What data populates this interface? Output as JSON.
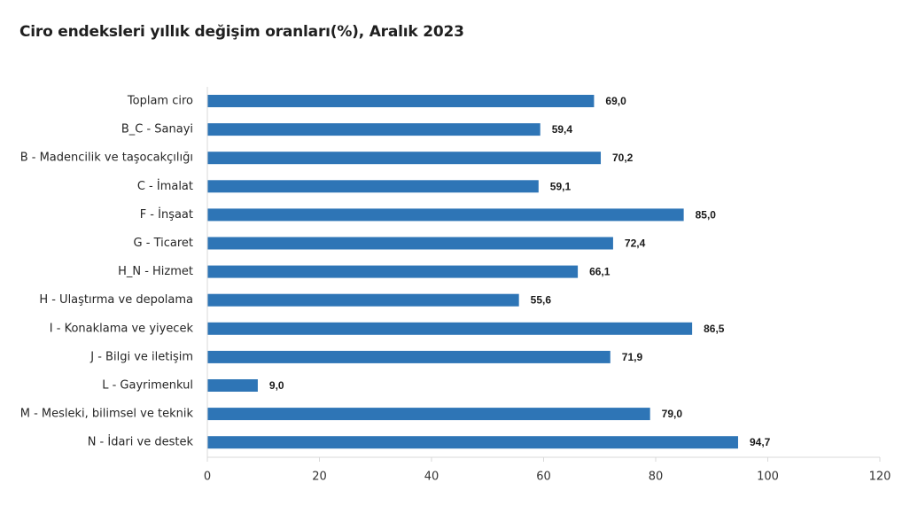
{
  "title": "Ciro endeksleri yıllık değişim oranları(%), Aralık 2023",
  "chart_data": {
    "type": "bar",
    "orientation": "horizontal",
    "title": "Ciro endeksleri yıllık değişim oranları(%), Aralık 2023",
    "categories": [
      "Toplam ciro",
      "B_C - Sanayi",
      "B - Madencilik ve taşocakçılığı",
      "C - İmalat",
      "F - İnşaat",
      "G - Ticaret",
      "H_N - Hizmet",
      "H - Ulaştırma ve depolama",
      "I - Konaklama ve yiyecek",
      "J - Bilgi ve iletişim",
      "L - Gayrimenkul",
      "M - Mesleki, bilimsel ve teknik",
      "N - İdari ve destek"
    ],
    "values": [
      69.0,
      59.4,
      70.2,
      59.1,
      85.0,
      72.4,
      66.1,
      55.6,
      86.5,
      71.9,
      9.0,
      79.0,
      94.7
    ],
    "value_labels": [
      "69,0",
      "59,4",
      "70,2",
      "59,1",
      "85,0",
      "72,4",
      "66,1",
      "55,6",
      "86,5",
      "71,9",
      "9,0",
      "79,0",
      "94,7"
    ],
    "xlim": [
      0,
      120
    ],
    "xticks": [
      0,
      20,
      40,
      60,
      80,
      100,
      120
    ],
    "xlabel": "",
    "ylabel": "",
    "grid": false,
    "legend": "none",
    "bar_color": "#2e75b6"
  }
}
